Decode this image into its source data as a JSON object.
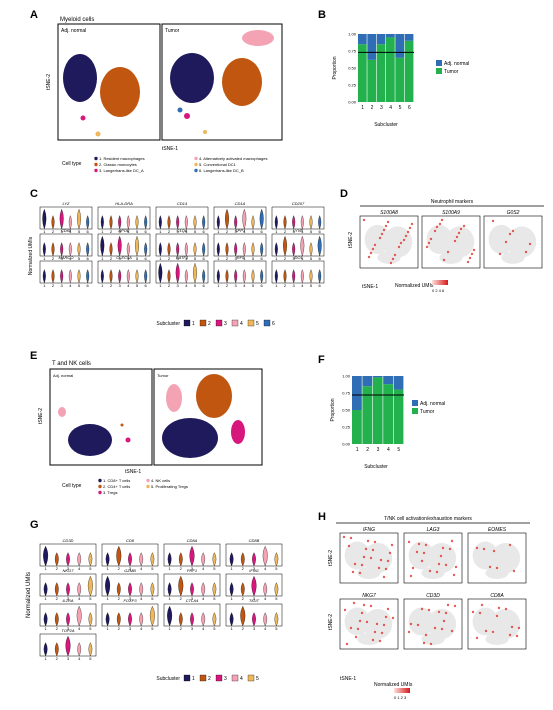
{
  "panels": {
    "A": {
      "letter": "A",
      "title": "Myeloid cells",
      "subplots": [
        "Adj. normal",
        "Tumor"
      ],
      "xlabel": "tSNE-1",
      "ylabel": "tSNE-2",
      "legend_title": "Cell type",
      "legend": [
        {
          "label": "1. Resident macrophages",
          "color": "#1f1a5c"
        },
        {
          "label": "2. Classic monocytes",
          "color": "#c0560f"
        },
        {
          "label": "3. Langerhans-like DC_A",
          "color": "#d8177e"
        },
        {
          "label": "4. Alternatively activated macrophages",
          "color": "#f4a3b5"
        },
        {
          "label": "5. Conventional DC1",
          "color": "#f0b65a"
        },
        {
          "label": "6. Langerhans-like DC_B",
          "color": "#2f6db5"
        }
      ]
    },
    "B": {
      "letter": "B",
      "xlabel": "Subcluster",
      "ylabel": "Proportion",
      "yticks": [
        "0.00",
        "0.25",
        "0.50",
        "0.75",
        "1.00"
      ],
      "xticks": [
        "1",
        "2",
        "3",
        "4",
        "5",
        "6"
      ],
      "legend": [
        {
          "label": "Adj. normal",
          "color": "#2f6db5"
        },
        {
          "label": "Tumor",
          "color": "#22b14c"
        }
      ]
    },
    "C": {
      "letter": "C",
      "ylabel": "Normalized UMIs",
      "genes": [
        "LYZ",
        "HLA-DRA",
        "CD14",
        "CD1A",
        "CD207",
        "CD68",
        "APOE",
        "C1QA",
        "SPP1",
        "LYVE",
        "MARCO",
        "CLEC9A",
        "BATF3",
        "IRF8",
        "IDO1"
      ],
      "legend_title": "Subcluster",
      "subclusters": [
        "1",
        "2",
        "3",
        "4",
        "5",
        "6"
      ],
      "xticks": [
        "1",
        "2",
        "3",
        "4",
        "5",
        "6"
      ]
    },
    "D": {
      "letter": "D",
      "title": "Neutrophil markers",
      "genes": [
        "S100A8",
        "S100A9",
        "G0S2"
      ],
      "xlabel": "tSNE-1",
      "ylabel": "tSNE-2",
      "legend_title": "Normalized UMIs",
      "legend_ticks": "0 2 4 6"
    },
    "E": {
      "letter": "E",
      "title": "T and NK cells",
      "subplots": [
        "Adj. normal",
        "Tumor"
      ],
      "xlabel": "tSNE-1",
      "ylabel": "tSNE-2",
      "legend_title": "Cell type",
      "legend": [
        {
          "label": "1. CD8+ T cells",
          "color": "#1f1a5c"
        },
        {
          "label": "2. CD4+ T cells",
          "color": "#c0560f"
        },
        {
          "label": "3. Tregs",
          "color": "#d8177e"
        },
        {
          "label": "4. NK cells",
          "color": "#f4a3b5"
        },
        {
          "label": "5. Proliferating Tregs",
          "color": "#f0b65a"
        }
      ]
    },
    "F": {
      "letter": "F",
      "xlabel": "Subcluster",
      "ylabel": "Proportion",
      "yticks": [
        "0.00",
        "0.25",
        "0.50",
        "0.75",
        "1.00"
      ],
      "xticks": [
        "1",
        "2",
        "3",
        "4",
        "5"
      ],
      "legend": [
        {
          "label": "Adj. normal",
          "color": "#2f6db5"
        },
        {
          "label": "Tumor",
          "color": "#22b14c"
        }
      ]
    },
    "G": {
      "letter": "G",
      "ylabel": "Normalized UMIs",
      "genes": [
        "CD3D",
        "CD8",
        "CD8A",
        "CD8B",
        "NKG7",
        "GZMB",
        "PRF1",
        "IFNG",
        "IL2RA",
        "FOXP3",
        "CTLA4",
        "TIGIT",
        "TOP2A"
      ],
      "legend_title": "Subcluster",
      "subclusters": [
        "1",
        "2",
        "3",
        "4",
        "5"
      ],
      "xticks": [
        "1",
        "2",
        "3",
        "4",
        "5"
      ]
    },
    "H": {
      "letter": "H",
      "title": "T/NK cell activation/exhaustion markers",
      "genes": [
        "IFNG",
        "LAG3",
        "EOMES",
        "NKG7",
        "CD3D",
        "CD8A"
      ],
      "xlabel": "tSNE-1",
      "ylabel": "tSNE-2",
      "legend_title": "Normalized UMIs",
      "legend_ticks": "0 1 2 3"
    }
  },
  "chart_data": [
    {
      "type": "bar",
      "panel": "B",
      "stacked": true,
      "categories": [
        "1",
        "2",
        "3",
        "4",
        "5",
        "6"
      ],
      "series": [
        {
          "name": "Tumor",
          "values": [
            0.85,
            0.62,
            0.85,
            0.95,
            0.65,
            0.9
          ]
        },
        {
          "name": "Adj. normal",
          "values": [
            0.15,
            0.38,
            0.15,
            0.05,
            0.35,
            0.1
          ]
        }
      ],
      "reference_line": 0.73,
      "xlabel": "Subcluster",
      "ylabel": "Proportion",
      "ylim": [
        0,
        1
      ],
      "legend_position": "right"
    },
    {
      "type": "bar",
      "panel": "F",
      "stacked": true,
      "categories": [
        "1",
        "2",
        "3",
        "4",
        "5"
      ],
      "series": [
        {
          "name": "Tumor",
          "values": [
            0.5,
            0.85,
            0.98,
            0.88,
            0.8
          ]
        },
        {
          "name": "Adj. normal",
          "values": [
            0.5,
            0.15,
            0.02,
            0.12,
            0.2
          ]
        }
      ],
      "reference_line": 0.72,
      "xlabel": "Subcluster",
      "ylabel": "Proportion",
      "ylim": [
        0,
        1
      ],
      "legend_position": "right"
    }
  ]
}
